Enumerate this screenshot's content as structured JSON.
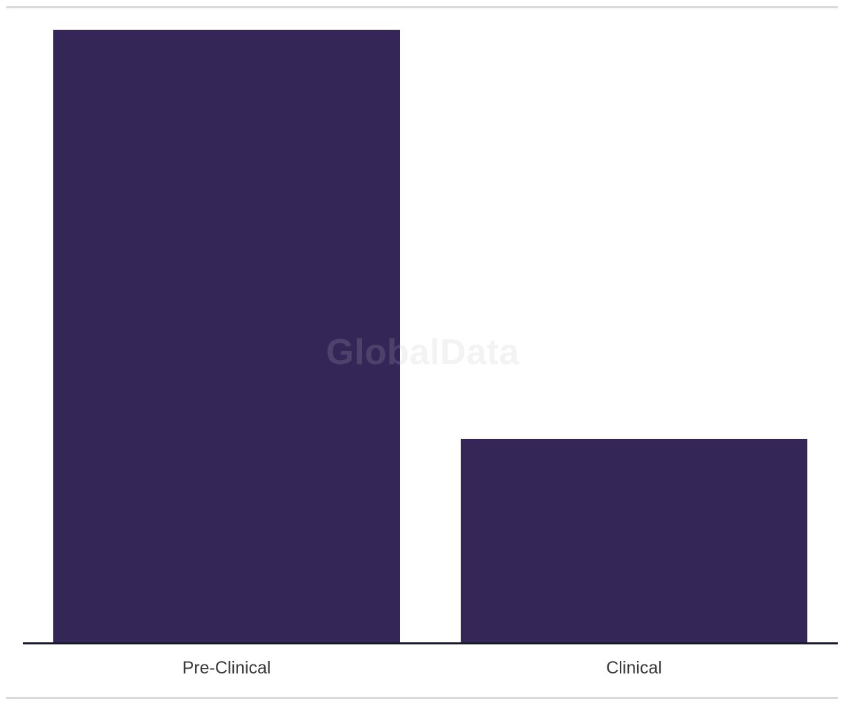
{
  "watermark": {
    "text": "GlobalData"
  },
  "colors": {
    "bar": "#342657",
    "axis_line": "#181a2b",
    "divider": "#d9d9d9",
    "label_text": "#3a3a3a",
    "watermark_back": "#f2f2f2",
    "watermark_front": "rgba(255,255,255,0.13)"
  },
  "chart_data": {
    "type": "bar",
    "categories": [
      "Pre-Clinical",
      "Clinical"
    ],
    "values": [
      3,
      1
    ],
    "title": "",
    "xlabel": "",
    "ylabel": "",
    "ylim": [
      0,
      3
    ],
    "grid": false,
    "legend": false,
    "y_axis_visible": false,
    "bar_width_frac": 0.85,
    "watermark": "GlobalData"
  }
}
